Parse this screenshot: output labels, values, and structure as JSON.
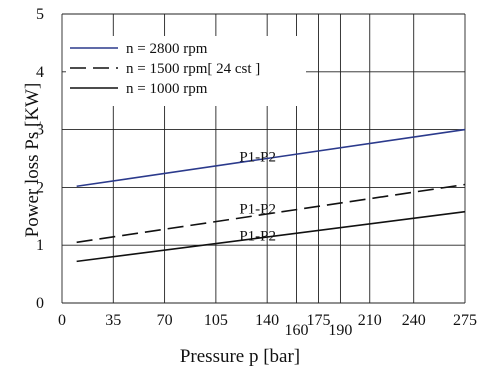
{
  "chart_data": {
    "type": "line",
    "title": "",
    "xlabel": "Pressure p [bar]",
    "ylabel": "Power loss Ps [KW]",
    "xlim": [
      0,
      275
    ],
    "ylim": [
      0,
      5
    ],
    "x_ticks": [
      "0",
      "35",
      "70",
      "105",
      "140",
      "160",
      "175",
      "190",
      "210",
      "240",
      "275"
    ],
    "x_tick_values": [
      0,
      35,
      70,
      105,
      140,
      160,
      175,
      190,
      210,
      240,
      275
    ],
    "y_ticks": [
      "0",
      "1",
      "2",
      "3",
      "4",
      "5"
    ],
    "y_tick_values": [
      0,
      1,
      2,
      3,
      4,
      5
    ],
    "legend_position": "top-left",
    "grid": true,
    "series": [
      {
        "name": "n = 2800 rpm",
        "x": [
          10,
          275
        ],
        "y": [
          2.02,
          3.0
        ],
        "color": "#2b3a8c",
        "dash": "solid"
      },
      {
        "name": "n = 1500 rpm[ 24 cst ]",
        "x": [
          10,
          275
        ],
        "y": [
          1.05,
          2.05
        ],
        "color": "#111111",
        "dash": "dashed"
      },
      {
        "name": "n = 1000 rpm",
        "x": [
          10,
          275
        ],
        "y": [
          0.72,
          1.58
        ],
        "color": "#111111",
        "dash": "solid"
      }
    ],
    "annotations": [
      {
        "text": "P1-P2",
        "x": 121,
        "y": 2.45
      },
      {
        "text": "P1-P2",
        "x": 121,
        "y": 1.55
      },
      {
        "text": "P1-P2",
        "x": 121,
        "y": 1.08
      }
    ]
  }
}
